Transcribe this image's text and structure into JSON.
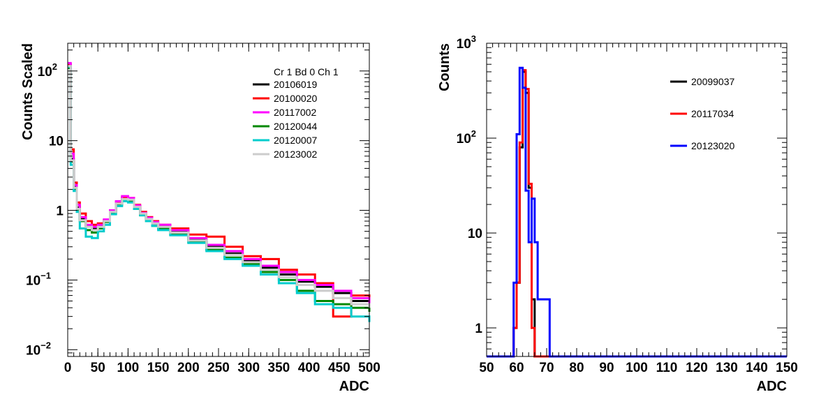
{
  "chart_data": [
    {
      "type": "line",
      "style": "step histogram",
      "xlabel": "ADC",
      "ylabel": "Counts Scaled",
      "xlim": [
        0,
        500
      ],
      "ylim": [
        0.008,
        250
      ],
      "yscale": "log",
      "x_ticks": [
        "0",
        "50",
        "100",
        "150",
        "200",
        "250",
        "300",
        "350",
        "400",
        "450",
        "500"
      ],
      "y_ticks": [
        {
          "value": 0.01,
          "base": "10",
          "exp": "−2"
        },
        {
          "value": 0.1,
          "base": "10",
          "exp": "−1"
        },
        {
          "value": 1,
          "base": "1",
          "exp": ""
        },
        {
          "value": 10,
          "base": "10",
          "exp": ""
        },
        {
          "value": 100,
          "base": "10",
          "exp": "2"
        }
      ],
      "legend": {
        "title": "Cr 1 Bd 0 Ch 1",
        "placement": "top-right"
      },
      "x": [
        0,
        5,
        10,
        15,
        20,
        30,
        40,
        50,
        60,
        70,
        80,
        90,
        100,
        110,
        120,
        130,
        140,
        150,
        170,
        200,
        230,
        260,
        290,
        320,
        350,
        380,
        410,
        440,
        470,
        500
      ],
      "series": [
        {
          "name": "20106019",
          "color": "#000000",
          "values": [
            120,
            5.5,
            2.2,
            1.1,
            0.75,
            0.6,
            0.55,
            0.6,
            0.7,
            0.95,
            1.25,
            1.5,
            1.45,
            1.15,
            0.9,
            0.75,
            0.65,
            0.6,
            0.5,
            0.38,
            0.3,
            0.24,
            0.19,
            0.15,
            0.12,
            0.095,
            0.08,
            0.065,
            0.05,
            0.04
          ]
        },
        {
          "name": "20100020",
          "color": "#ff0000",
          "values": [
            125,
            7.5,
            2.5,
            1.3,
            0.9,
            0.7,
            0.62,
            0.65,
            0.72,
            0.98,
            1.3,
            1.55,
            1.5,
            1.2,
            0.95,
            0.8,
            0.7,
            0.62,
            0.55,
            0.45,
            0.42,
            0.3,
            0.22,
            0.2,
            0.14,
            0.12,
            0.09,
            0.03,
            0.06,
            0.045
          ]
        },
        {
          "name": "20117002",
          "color": "#ff00ff",
          "values": [
            130,
            6.5,
            2.3,
            1.2,
            0.8,
            0.62,
            0.58,
            0.62,
            0.74,
            1.0,
            1.35,
            1.6,
            1.5,
            1.18,
            0.92,
            0.78,
            0.68,
            0.62,
            0.52,
            0.4,
            0.32,
            0.26,
            0.2,
            0.16,
            0.13,
            0.1,
            0.085,
            0.07,
            0.055,
            0.045
          ]
        },
        {
          "name": "20120044",
          "color": "#008800",
          "values": [
            110,
            5.0,
            2.0,
            1.0,
            0.7,
            0.52,
            0.48,
            0.55,
            0.68,
            0.9,
            1.2,
            1.4,
            1.35,
            1.05,
            0.85,
            0.7,
            0.6,
            0.55,
            0.45,
            0.35,
            0.27,
            0.21,
            0.17,
            0.13,
            0.1,
            0.07,
            0.05,
            0.045,
            0.04,
            0.035
          ]
        },
        {
          "name": "20120007",
          "color": "#00cccc",
          "values": [
            115,
            4.5,
            1.9,
            0.95,
            0.55,
            0.42,
            0.4,
            0.5,
            0.62,
            0.88,
            1.15,
            1.35,
            1.3,
            1.05,
            0.85,
            0.7,
            0.6,
            0.52,
            0.44,
            0.34,
            0.26,
            0.2,
            0.16,
            0.12,
            0.09,
            0.065,
            0.045,
            0.04,
            0.03,
            0.025
          ]
        },
        {
          "name": "20123002",
          "color": "#cccccc",
          "values": [
            118,
            5.2,
            2.1,
            1.05,
            0.72,
            0.58,
            0.52,
            0.58,
            0.7,
            0.95,
            1.25,
            1.45,
            1.42,
            1.12,
            0.9,
            0.75,
            0.65,
            0.58,
            0.48,
            0.37,
            0.29,
            0.23,
            0.18,
            0.14,
            0.11,
            0.085,
            0.07,
            0.055,
            0.045,
            0.04
          ]
        }
      ]
    },
    {
      "type": "line",
      "style": "step histogram",
      "xlabel": "ADC",
      "ylabel": "Counts",
      "xlim": [
        50,
        150
      ],
      "ylim": [
        0.5,
        1000
      ],
      "yscale": "log",
      "x_ticks": [
        "50",
        "60",
        "70",
        "80",
        "90",
        "100",
        "110",
        "120",
        "130",
        "140",
        "150"
      ],
      "y_ticks": [
        {
          "value": 1,
          "base": "1",
          "exp": ""
        },
        {
          "value": 10,
          "base": "10",
          "exp": ""
        },
        {
          "value": 100,
          "base": "10",
          "exp": "2"
        },
        {
          "value": 1000,
          "base": "10",
          "exp": "3"
        }
      ],
      "legend": {
        "title": "",
        "placement": "top-right"
      },
      "bin_edges": [
        50,
        59,
        60,
        61,
        62,
        63,
        64,
        65,
        66,
        67,
        68,
        69,
        70,
        71,
        72,
        150
      ],
      "series": [
        {
          "name": "20099037",
          "color": "#000000",
          "values": [
            0.5,
            1,
            3,
            80,
            500,
            300,
            30,
            2,
            0.5,
            0.5,
            0.5,
            0.5,
            0.5,
            0.5,
            0.5
          ]
        },
        {
          "name": "20117034",
          "color": "#ff0000",
          "values": [
            0.5,
            1,
            3,
            90,
            520,
            330,
            33,
            1,
            0.5,
            0.5,
            0.5,
            0.5,
            0.5,
            0.5,
            0.5
          ]
        },
        {
          "name": "20123020",
          "color": "#0000ff",
          "values": [
            0.5,
            3,
            110,
            550,
            340,
            28,
            8,
            23,
            8,
            2,
            2,
            2,
            2,
            0.5,
            0.5
          ]
        }
      ]
    }
  ]
}
